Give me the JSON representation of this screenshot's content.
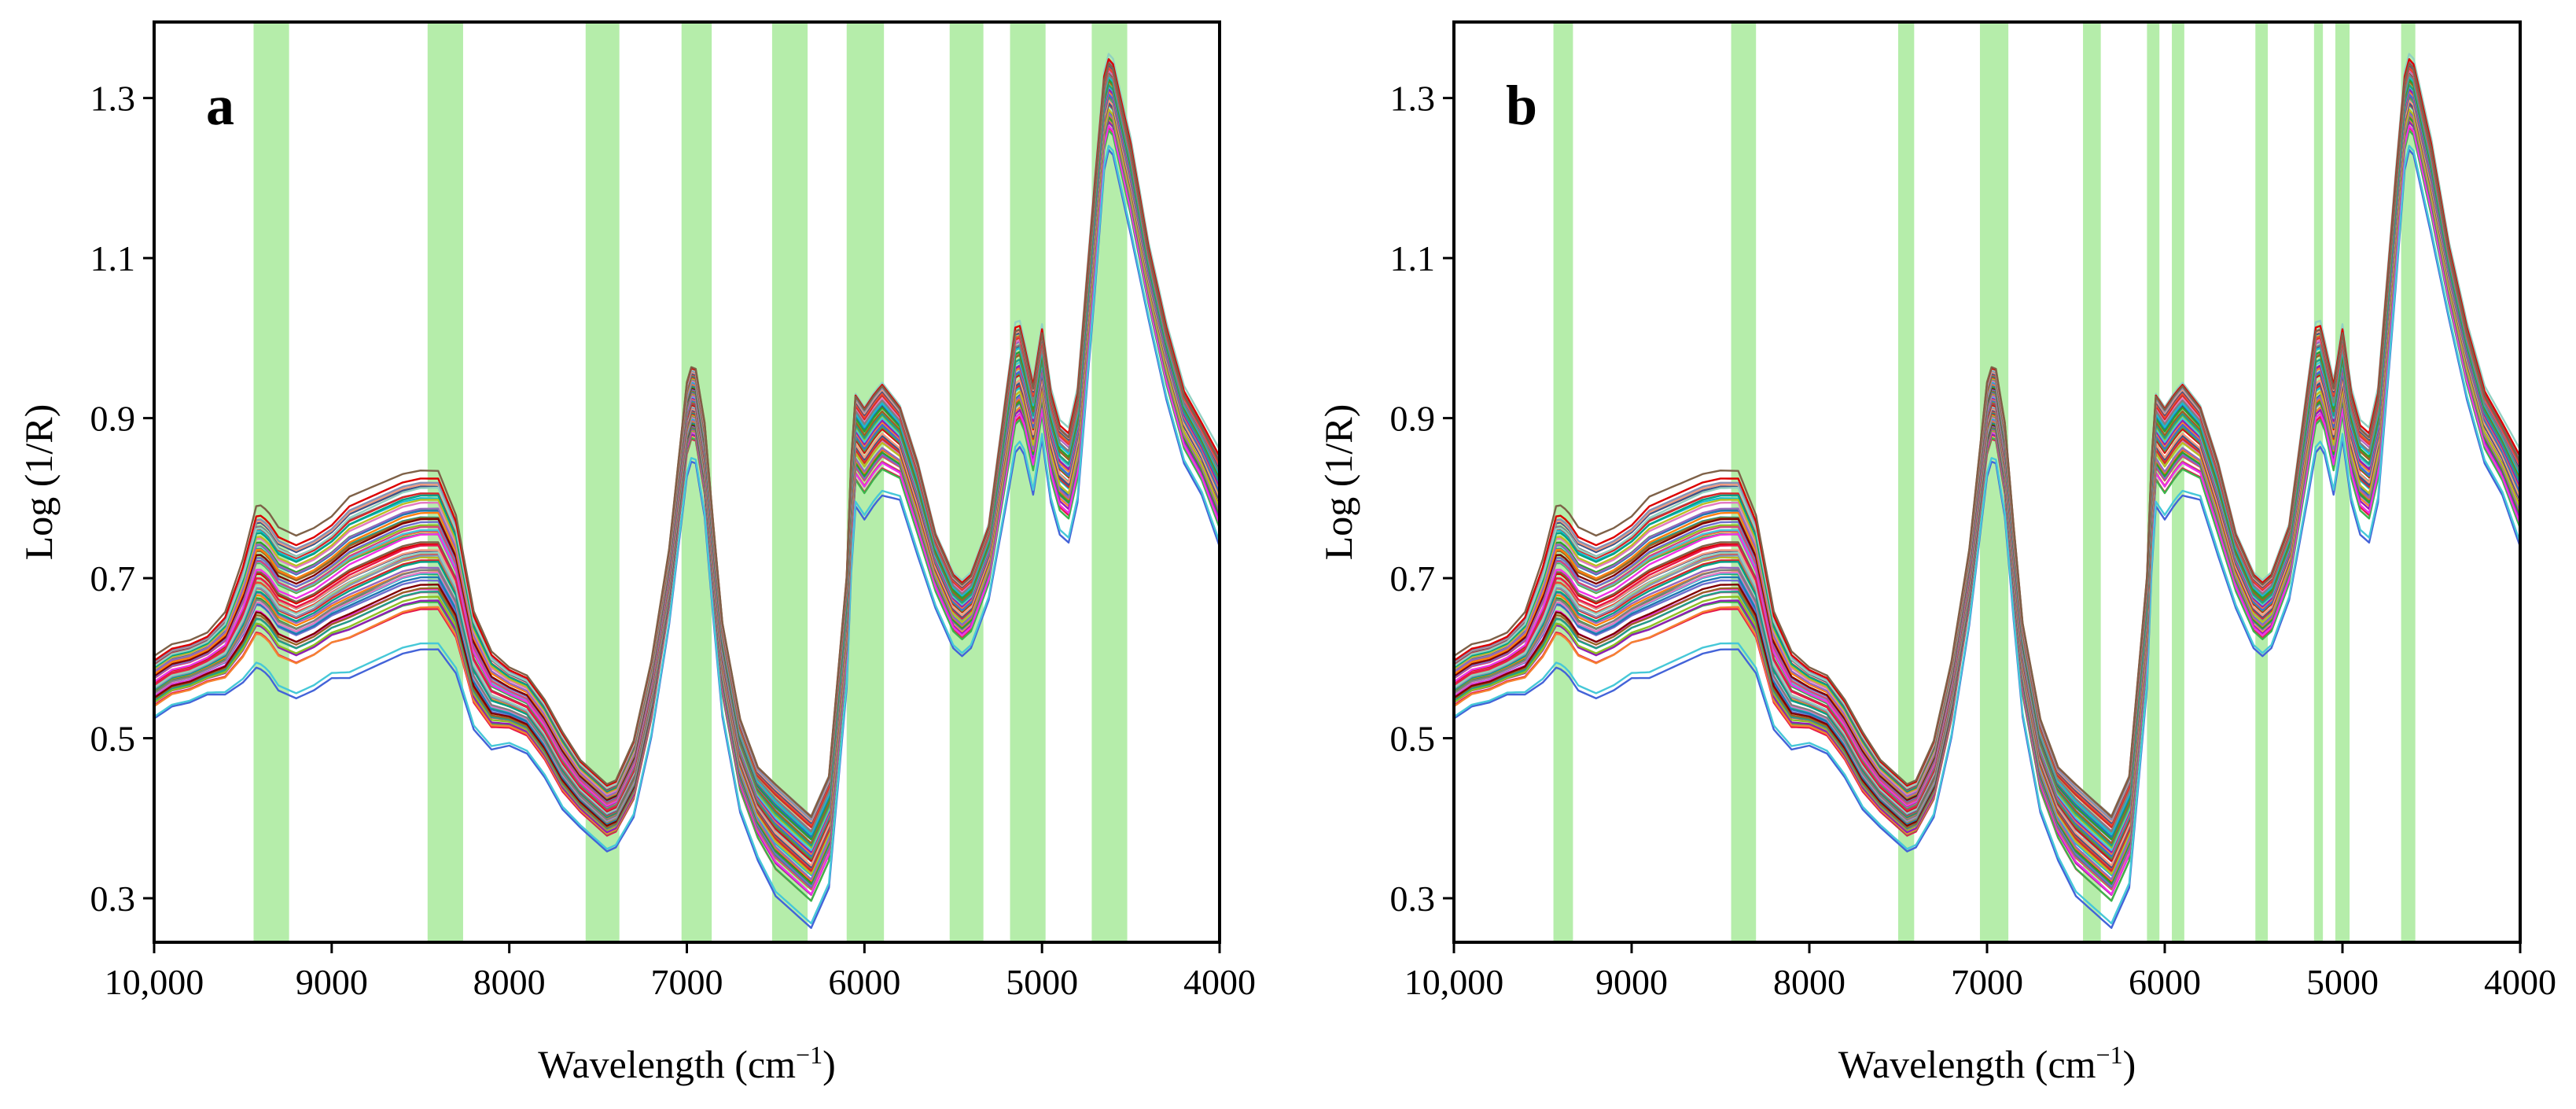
{
  "chart_data": [
    {
      "type": "line",
      "panel_label": "a",
      "xlabel": "Wavelength (cm",
      "xlabel_sup": "−1",
      "xlabel_end": ")",
      "ylabel": "Log (1/R)",
      "xlim": [
        10000,
        4000
      ],
      "ylim": [
        0.245,
        1.395
      ],
      "x_reversed": true,
      "x_ticks": [
        10000,
        9000,
        8000,
        7000,
        6000,
        5000,
        4000
      ],
      "x_tick_labels": [
        "10,000",
        "9000",
        "8000",
        "7000",
        "6000",
        "5000",
        "4000"
      ],
      "y_ticks": [
        0.3,
        0.5,
        0.7,
        0.9,
        1.1,
        1.3
      ],
      "y_tick_labels": [
        "0.3",
        "0.5",
        "0.7",
        "0.9",
        "1.1",
        "1.3"
      ],
      "grid": false,
      "legend": "none",
      "highlighted_bands_cm1": [
        [
          9440,
          9240
        ],
        [
          8460,
          8260
        ],
        [
          7570,
          7380
        ],
        [
          7030,
          6860
        ],
        [
          6520,
          6320
        ],
        [
          6100,
          5890
        ],
        [
          5520,
          5330
        ],
        [
          5180,
          4980
        ],
        [
          4720,
          4520
        ]
      ],
      "band_color": "#b5edaa",
      "series_count": 60,
      "series_template": {
        "x": [
          10000,
          9900,
          9800,
          9700,
          9600,
          9500,
          9420,
          9360,
          9300,
          9200,
          9100,
          9000,
          8900,
          8800,
          8700,
          8600,
          8500,
          8400,
          8300,
          8200,
          8100,
          8000,
          7900,
          7800,
          7700,
          7600,
          7500,
          7450,
          7400,
          7300,
          7200,
          7100,
          7000,
          6960,
          6900,
          6850,
          6800,
          6700,
          6600,
          6500,
          6400,
          6300,
          6200,
          6100,
          6060,
          6000,
          5940,
          5900,
          5800,
          5700,
          5600,
          5500,
          5450,
          5400,
          5300,
          5200,
          5140,
          5100,
          5050,
          5000,
          4950,
          4900,
          4850,
          4800,
          4700,
          4640,
          4600,
          4500,
          4400,
          4300,
          4200,
          4100,
          4000
        ],
        "y_mean": [
          0.57,
          0.585,
          0.59,
          0.6,
          0.615,
          0.66,
          0.71,
          0.7,
          0.68,
          0.67,
          0.68,
          0.695,
          0.71,
          0.72,
          0.73,
          0.74,
          0.745,
          0.745,
          0.7,
          0.6,
          0.56,
          0.55,
          0.54,
          0.51,
          0.47,
          0.44,
          0.42,
          0.41,
          0.415,
          0.46,
          0.56,
          0.7,
          0.9,
          0.93,
          0.85,
          0.72,
          0.6,
          0.48,
          0.42,
          0.39,
          0.37,
          0.35,
          0.4,
          0.65,
          0.88,
          0.86,
          0.88,
          0.89,
          0.87,
          0.8,
          0.72,
          0.67,
          0.66,
          0.67,
          0.73,
          0.88,
          0.97,
          0.94,
          0.89,
          0.96,
          0.88,
          0.84,
          0.83,
          0.88,
          1.15,
          1.31,
          1.3,
          1.2,
          1.08,
          0.98,
          0.9,
          0.86,
          0.81
        ],
        "y_spread": [
          0.03,
          0.03,
          0.03,
          0.03,
          0.04,
          0.06,
          0.08,
          0.08,
          0.08,
          0.08,
          0.08,
          0.08,
          0.09,
          0.09,
          0.09,
          0.09,
          0.09,
          0.09,
          0.08,
          0.06,
          0.05,
          0.04,
          0.04,
          0.04,
          0.04,
          0.035,
          0.035,
          0.035,
          0.035,
          0.04,
          0.04,
          0.04,
          0.05,
          0.05,
          0.05,
          0.05,
          0.05,
          0.05,
          0.05,
          0.06,
          0.06,
          0.06,
          0.06,
          0.06,
          0.06,
          0.06,
          0.06,
          0.06,
          0.05,
          0.05,
          0.04,
          0.04,
          0.04,
          0.04,
          0.04,
          0.06,
          0.07,
          0.06,
          0.06,
          0.06,
          0.06,
          0.06,
          0.06,
          0.06,
          0.06,
          0.05,
          0.05,
          0.05,
          0.04,
          0.04,
          0.04,
          0.04,
          0.05
        ]
      }
    },
    {
      "type": "line",
      "panel_label": "b",
      "xlabel": "Wavelength (cm",
      "xlabel_sup": "−1",
      "xlabel_end": ")",
      "ylabel": "Log (1/R)",
      "xlim": [
        10000,
        4000
      ],
      "ylim": [
        0.245,
        1.395
      ],
      "x_reversed": true,
      "x_ticks": [
        10000,
        9000,
        8000,
        7000,
        6000,
        5000,
        4000
      ],
      "x_tick_labels": [
        "10,000",
        "9000",
        "8000",
        "7000",
        "6000",
        "5000",
        "4000"
      ],
      "y_ticks": [
        0.3,
        0.5,
        0.7,
        0.9,
        1.1,
        1.3
      ],
      "y_tick_labels": [
        "0.3",
        "0.5",
        "0.7",
        "0.9",
        "1.1",
        "1.3"
      ],
      "grid": false,
      "legend": "none",
      "highlighted_bands_cm1": [
        [
          9440,
          9330
        ],
        [
          8440,
          8300
        ],
        [
          7500,
          7410
        ],
        [
          7040,
          6880
        ],
        [
          6460,
          6360
        ],
        [
          6100,
          6030
        ],
        [
          5960,
          5890
        ],
        [
          5490,
          5420
        ],
        [
          5160,
          5110
        ],
        [
          5040,
          4960
        ],
        [
          4670,
          4590
        ]
      ],
      "band_color": "#b5edaa",
      "series_count": 60,
      "series_template": {
        "x": [
          10000,
          9900,
          9800,
          9700,
          9600,
          9500,
          9420,
          9360,
          9300,
          9200,
          9100,
          9000,
          8900,
          8800,
          8700,
          8600,
          8500,
          8400,
          8300,
          8200,
          8100,
          8000,
          7900,
          7800,
          7700,
          7600,
          7500,
          7450,
          7400,
          7300,
          7200,
          7100,
          7000,
          6960,
          6900,
          6850,
          6800,
          6700,
          6600,
          6500,
          6400,
          6300,
          6200,
          6100,
          6060,
          6000,
          5940,
          5900,
          5800,
          5700,
          5600,
          5500,
          5450,
          5400,
          5300,
          5200,
          5140,
          5100,
          5050,
          5000,
          4950,
          4900,
          4850,
          4800,
          4700,
          4640,
          4600,
          4500,
          4400,
          4300,
          4200,
          4100,
          4000
        ],
        "y_mean": [
          0.57,
          0.585,
          0.59,
          0.6,
          0.615,
          0.66,
          0.71,
          0.7,
          0.68,
          0.67,
          0.68,
          0.695,
          0.71,
          0.72,
          0.73,
          0.74,
          0.745,
          0.745,
          0.7,
          0.6,
          0.56,
          0.55,
          0.54,
          0.51,
          0.47,
          0.44,
          0.42,
          0.41,
          0.415,
          0.46,
          0.56,
          0.7,
          0.9,
          0.93,
          0.85,
          0.72,
          0.6,
          0.48,
          0.42,
          0.39,
          0.37,
          0.35,
          0.4,
          0.65,
          0.88,
          0.86,
          0.88,
          0.89,
          0.87,
          0.8,
          0.72,
          0.67,
          0.66,
          0.67,
          0.73,
          0.88,
          0.97,
          0.94,
          0.89,
          0.96,
          0.88,
          0.84,
          0.83,
          0.88,
          1.15,
          1.31,
          1.3,
          1.2,
          1.08,
          0.98,
          0.9,
          0.86,
          0.81
        ],
        "y_spread": [
          0.03,
          0.03,
          0.03,
          0.03,
          0.04,
          0.06,
          0.08,
          0.08,
          0.08,
          0.08,
          0.08,
          0.08,
          0.09,
          0.09,
          0.09,
          0.09,
          0.09,
          0.09,
          0.08,
          0.06,
          0.05,
          0.04,
          0.04,
          0.04,
          0.04,
          0.035,
          0.035,
          0.035,
          0.035,
          0.04,
          0.04,
          0.04,
          0.05,
          0.05,
          0.05,
          0.05,
          0.05,
          0.05,
          0.05,
          0.06,
          0.06,
          0.06,
          0.06,
          0.06,
          0.06,
          0.06,
          0.06,
          0.06,
          0.05,
          0.05,
          0.04,
          0.04,
          0.04,
          0.04,
          0.04,
          0.06,
          0.07,
          0.06,
          0.06,
          0.06,
          0.06,
          0.06,
          0.06,
          0.06,
          0.06,
          0.05,
          0.05,
          0.05,
          0.04,
          0.04,
          0.04,
          0.04,
          0.05
        ]
      }
    }
  ],
  "series_palette": [
    "#e6194b",
    "#3cb44b",
    "#4363d8",
    "#f58231",
    "#911eb4",
    "#46c8d8",
    "#f032e6",
    "#8fbf22",
    "#d4477d",
    "#1f9e89",
    "#9a6324",
    "#6f6fcf",
    "#800000",
    "#2ca02c",
    "#1f77b4",
    "#ff7f0e",
    "#9467bd",
    "#17becf",
    "#e377c2",
    "#7f7f7f",
    "#bcbd22",
    "#d62728",
    "#00a087",
    "#e64b35",
    "#3c5488",
    "#f39b7f",
    "#8491b4",
    "#91d1c2",
    "#dc0000",
    "#7e6148"
  ]
}
